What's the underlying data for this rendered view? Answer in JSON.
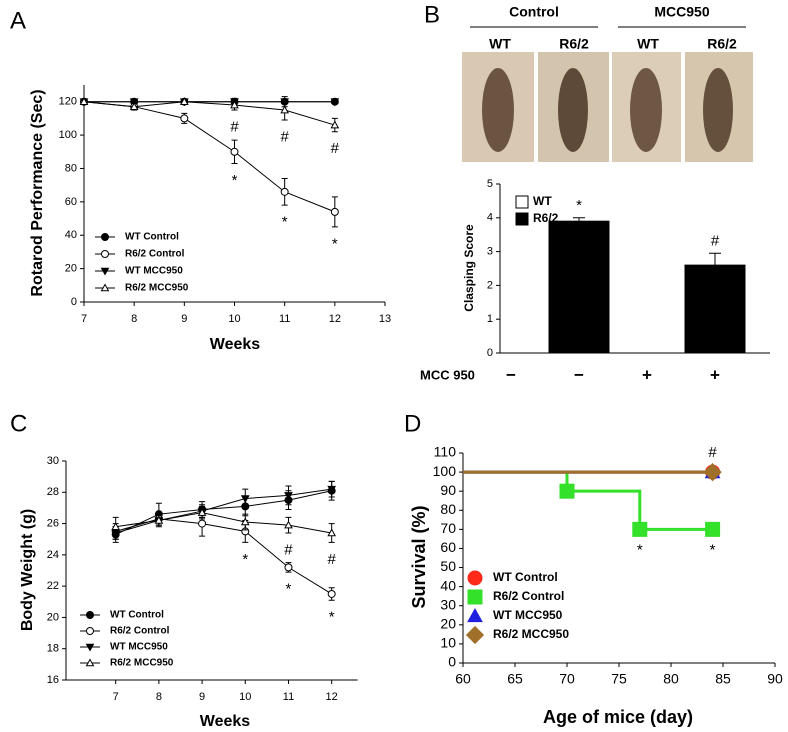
{
  "chart_data": [
    {
      "type": "line",
      "panel": "A",
      "xlabel": "Weeks",
      "ylabel": "Rotarod Performance (Sec)",
      "x": [
        7,
        8,
        9,
        10,
        11,
        12
      ],
      "xlim": [
        7,
        13
      ],
      "xticks": [
        7,
        8,
        9,
        10,
        11,
        12,
        13
      ],
      "ylim": [
        0,
        130
      ],
      "yticks": [
        0,
        20,
        40,
        60,
        80,
        100,
        120
      ],
      "series": [
        {
          "name": "WT Control",
          "color": "#000000",
          "marker": "circle",
          "values": [
            120,
            120,
            120,
            120,
            120,
            120
          ],
          "errors": [
            0,
            0,
            0,
            0,
            0,
            0
          ]
        },
        {
          "name": "R6/2 Control",
          "color": "#000000",
          "marker": "circle-open",
          "values": [
            120,
            117,
            110,
            90,
            66,
            54
          ],
          "errors": [
            0,
            2,
            3,
            7,
            8,
            9
          ],
          "annotations": [
            null,
            null,
            null,
            "*",
            "*",
            "*"
          ],
          "annotation_position": "below"
        },
        {
          "name": "WT MCC950",
          "color": "#000000",
          "marker": "triangle-down",
          "values": [
            120,
            120,
            120,
            120,
            120,
            120
          ],
          "errors": [
            0,
            0,
            0,
            2,
            3,
            0
          ]
        },
        {
          "name": "R6/2 MCC950",
          "color": "#000000",
          "marker": "triangle-open",
          "values": [
            120,
            117,
            120,
            118,
            115,
            106
          ],
          "errors": [
            0,
            2,
            0,
            3,
            6,
            4
          ],
          "annotations": [
            null,
            null,
            null,
            "#",
            "#",
            "#"
          ],
          "annotation_position": "below"
        }
      ]
    },
    {
      "type": "bar",
      "panel": "B",
      "ylabel": "Clasping Score",
      "category_row_label": "MCC 950",
      "categories": [
        "−",
        "−",
        "+",
        "+"
      ],
      "values": [
        0,
        3.9,
        0,
        2.6
      ],
      "errors": [
        0,
        0.1,
        0,
        0.35
      ],
      "colors": [
        "#ffffff",
        "#000000",
        "#ffffff",
        "#000000"
      ],
      "value_annotations": [
        null,
        "*",
        null,
        "#"
      ],
      "legend": [
        {
          "name": "WT",
          "color": "#ffffff"
        },
        {
          "name": "R6/2",
          "color": "#000000"
        }
      ],
      "ylim": [
        0,
        5
      ],
      "yticks": [
        0,
        1,
        2,
        3,
        4,
        5
      ],
      "photo_groups": [
        {
          "label": "Control",
          "columns": [
            "WT",
            "R6/2"
          ]
        },
        {
          "label": "MCC950",
          "columns": [
            "WT",
            "R6/2"
          ]
        }
      ]
    },
    {
      "type": "line",
      "panel": "C",
      "xlabel": "Weeks",
      "ylabel": "Body Weight (g)",
      "x": [
        7,
        8,
        9,
        10,
        11,
        12
      ],
      "xlim": [
        5.85,
        12.6
      ],
      "xticks": [
        7,
        8,
        9,
        10,
        11,
        12
      ],
      "ylim": [
        16,
        30
      ],
      "yticks": [
        16,
        18,
        20,
        22,
        24,
        26,
        28,
        30
      ],
      "series": [
        {
          "name": "WT Control",
          "color": "#000000",
          "marker": "circle",
          "values": [
            25.3,
            26.6,
            26.9,
            27.1,
            27.5,
            28.1
          ],
          "errors": [
            0.5,
            0.7,
            0.5,
            0.6,
            0.6,
            0.6
          ]
        },
        {
          "name": "R6/2 Control",
          "color": "#000000",
          "marker": "circle-open",
          "values": [
            25.5,
            26.3,
            26.0,
            25.5,
            23.2,
            21.5
          ],
          "errors": [
            0.5,
            0.4,
            0.8,
            0.7,
            0.3,
            0.4
          ],
          "annotations": [
            null,
            null,
            null,
            "*",
            "*",
            "*"
          ],
          "annotation_position": "below"
        },
        {
          "name": "WT MCC950",
          "color": "#000000",
          "marker": "triangle-down",
          "values": [
            25.4,
            26.2,
            26.8,
            27.6,
            27.8,
            28.2
          ],
          "errors": [
            0.4,
            0.4,
            0.4,
            0.6,
            0.6,
            0.5
          ]
        },
        {
          "name": "R6/2 MCC950",
          "color": "#000000",
          "marker": "triangle-open",
          "values": [
            25.8,
            26.2,
            26.7,
            26.1,
            25.9,
            25.4
          ],
          "errors": [
            0.6,
            0.3,
            0.4,
            0.5,
            0.5,
            0.6
          ],
          "annotations": [
            null,
            null,
            null,
            null,
            "#",
            "#"
          ],
          "annotation_position": "below"
        }
      ]
    },
    {
      "type": "line",
      "panel": "D",
      "step": true,
      "xlabel": "Age of mice (day)",
      "ylabel": "Survival (%)",
      "xlim": [
        60,
        90
      ],
      "xticks": [
        60,
        65,
        70,
        75,
        80,
        85,
        90
      ],
      "ylim": [
        0,
        110
      ],
      "yticks": [
        0,
        10,
        20,
        30,
        40,
        50,
        60,
        70,
        80,
        90,
        100,
        110
      ],
      "series": [
        {
          "name": "WT Control",
          "color": "#ff2a1a",
          "marker": "circle",
          "x": [
            60,
            84
          ],
          "values": [
            100,
            100
          ]
        },
        {
          "name": "R6/2 Control",
          "color": "#33e02a",
          "marker": "square",
          "x": [
            60,
            70,
            77,
            84
          ],
          "values": [
            100,
            90,
            70,
            70
          ],
          "annotations": [
            null,
            null,
            "*",
            "*"
          ],
          "annotation_position": "below"
        },
        {
          "name": "WT MCC950",
          "color": "#2020e0",
          "marker": "triangle",
          "x": [
            60,
            84
          ],
          "values": [
            100,
            100
          ]
        },
        {
          "name": "R6/2 MCC950",
          "color": "#a0702a",
          "marker": "diamond",
          "x": [
            60,
            84
          ],
          "values": [
            100,
            100
          ],
          "annotations": [
            null,
            "#"
          ],
          "annotation_position": "above"
        }
      ]
    }
  ]
}
